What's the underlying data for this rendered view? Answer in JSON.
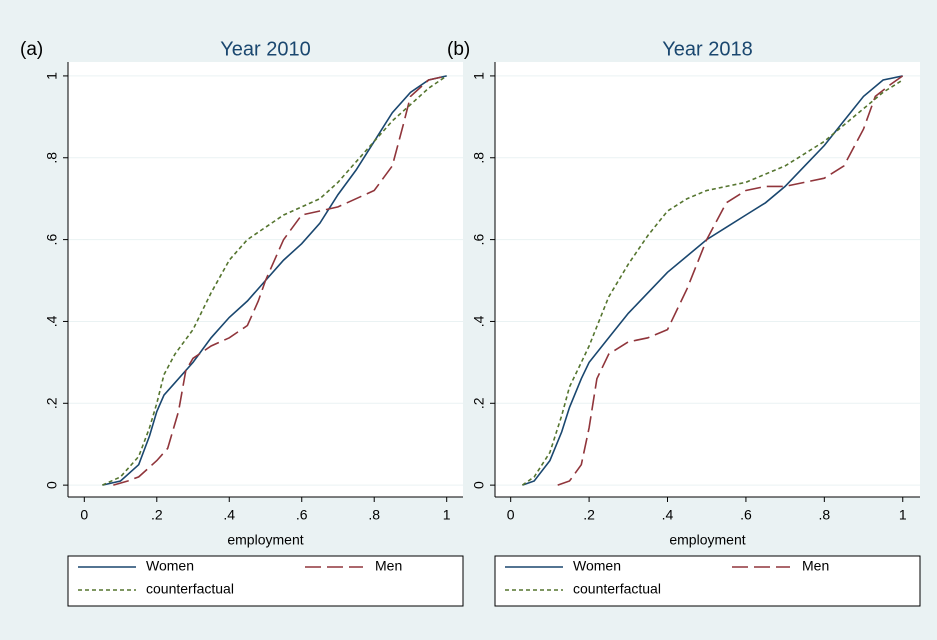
{
  "chart_data": [
    {
      "type": "line",
      "panel_label": "(a)",
      "title": "Year 2010",
      "xlabel": "employment",
      "xlim": [
        -0.045,
        1.045
      ],
      "ylim": [
        -0.029,
        1.034
      ],
      "xticks": [
        0,
        {
          "value": 0.2,
          "label": ".2"
        },
        {
          "value": 0.4,
          "label": ".4"
        },
        {
          "value": 0.6,
          "label": ".6"
        },
        {
          "value": 0.8,
          "label": ".8"
        },
        1
      ],
      "yticks": [
        0,
        {
          "value": 0.2,
          "label": ".2"
        },
        {
          "value": 0.4,
          "label": ".4"
        },
        {
          "value": 0.6,
          "label": ".6"
        },
        {
          "value": 0.8,
          "label": ".8"
        },
        1
      ],
      "grid": true,
      "series": [
        {
          "name": "Women",
          "color": "#1a476f",
          "dash": "solid",
          "x": [
            0.05,
            0.1,
            0.15,
            0.18,
            0.2,
            0.22,
            0.25,
            0.3,
            0.35,
            0.4,
            0.45,
            0.5,
            0.55,
            0.6,
            0.65,
            0.7,
            0.75,
            0.8,
            0.85,
            0.9,
            0.95,
            1
          ],
          "values": [
            0,
            0.01,
            0.05,
            0.12,
            0.18,
            0.22,
            0.25,
            0.3,
            0.36,
            0.41,
            0.45,
            0.5,
            0.55,
            0.59,
            0.64,
            0.71,
            0.77,
            0.84,
            0.91,
            0.96,
            0.99,
            1
          ]
        },
        {
          "name": "Men",
          "color": "#90353b",
          "dash": "long",
          "x": [
            0.08,
            0.12,
            0.15,
            0.2,
            0.23,
            0.26,
            0.28,
            0.3,
            0.35,
            0.4,
            0.45,
            0.48,
            0.5,
            0.55,
            0.6,
            0.65,
            0.7,
            0.75,
            0.8,
            0.85,
            0.88,
            0.9,
            0.95,
            1
          ],
          "values": [
            0,
            0.01,
            0.02,
            0.06,
            0.09,
            0.18,
            0.28,
            0.31,
            0.34,
            0.36,
            0.39,
            0.45,
            0.5,
            0.6,
            0.66,
            0.67,
            0.68,
            0.7,
            0.72,
            0.78,
            0.88,
            0.95,
            0.99,
            1
          ]
        },
        {
          "name": "counterfactual",
          "color": "#55752f",
          "dash": "short",
          "x": [
            0.05,
            0.1,
            0.15,
            0.18,
            0.2,
            0.22,
            0.25,
            0.3,
            0.35,
            0.4,
            0.45,
            0.5,
            0.55,
            0.6,
            0.65,
            0.7,
            0.75,
            0.8,
            0.85,
            0.9,
            0.95,
            1
          ],
          "values": [
            0,
            0.02,
            0.07,
            0.14,
            0.2,
            0.27,
            0.32,
            0.38,
            0.47,
            0.55,
            0.6,
            0.63,
            0.66,
            0.68,
            0.7,
            0.74,
            0.79,
            0.84,
            0.89,
            0.93,
            0.97,
            1
          ]
        }
      ]
    },
    {
      "type": "line",
      "panel_label": "(b)",
      "title": "Year 2018",
      "xlabel": "employment",
      "xlim": [
        -0.04,
        1.044
      ],
      "ylim": [
        -0.029,
        1.034
      ],
      "xticks": [
        0,
        {
          "value": 0.2,
          "label": ".2"
        },
        {
          "value": 0.4,
          "label": ".4"
        },
        {
          "value": 0.6,
          "label": ".6"
        },
        {
          "value": 0.8,
          "label": ".8"
        },
        1
      ],
      "yticks": [
        0,
        {
          "value": 0.2,
          "label": ".2"
        },
        {
          "value": 0.4,
          "label": ".4"
        },
        {
          "value": 0.6,
          "label": ".6"
        },
        {
          "value": 0.8,
          "label": ".8"
        },
        1
      ],
      "grid": true,
      "series": [
        {
          "name": "Women",
          "color": "#1a476f",
          "dash": "solid",
          "x": [
            0.03,
            0.06,
            0.1,
            0.13,
            0.15,
            0.18,
            0.2,
            0.25,
            0.3,
            0.35,
            0.4,
            0.45,
            0.5,
            0.55,
            0.6,
            0.65,
            0.7,
            0.75,
            0.8,
            0.85,
            0.9,
            0.95,
            1
          ],
          "values": [
            0,
            0.01,
            0.06,
            0.13,
            0.19,
            0.26,
            0.3,
            0.36,
            0.42,
            0.47,
            0.52,
            0.56,
            0.6,
            0.63,
            0.66,
            0.69,
            0.73,
            0.78,
            0.83,
            0.89,
            0.95,
            0.99,
            1
          ]
        },
        {
          "name": "Men",
          "color": "#90353b",
          "dash": "long",
          "x": [
            0.12,
            0.15,
            0.18,
            0.2,
            0.22,
            0.25,
            0.3,
            0.35,
            0.4,
            0.45,
            0.5,
            0.55,
            0.6,
            0.65,
            0.7,
            0.75,
            0.8,
            0.85,
            0.9,
            0.93,
            0.97,
            1
          ],
          "values": [
            0,
            0.01,
            0.05,
            0.14,
            0.26,
            0.32,
            0.35,
            0.36,
            0.38,
            0.48,
            0.6,
            0.69,
            0.72,
            0.73,
            0.73,
            0.74,
            0.75,
            0.78,
            0.87,
            0.95,
            0.98,
            1
          ]
        },
        {
          "name": "counterfactual",
          "color": "#55752f",
          "dash": "short",
          "x": [
            0.03,
            0.06,
            0.1,
            0.13,
            0.15,
            0.18,
            0.2,
            0.25,
            0.3,
            0.35,
            0.4,
            0.45,
            0.5,
            0.55,
            0.6,
            0.65,
            0.7,
            0.75,
            0.8,
            0.85,
            0.9,
            0.95,
            1
          ],
          "values": [
            0,
            0.02,
            0.08,
            0.17,
            0.24,
            0.3,
            0.34,
            0.46,
            0.54,
            0.61,
            0.67,
            0.7,
            0.72,
            0.73,
            0.74,
            0.76,
            0.78,
            0.81,
            0.84,
            0.88,
            0.92,
            0.96,
            0.99
          ]
        }
      ]
    }
  ]
}
